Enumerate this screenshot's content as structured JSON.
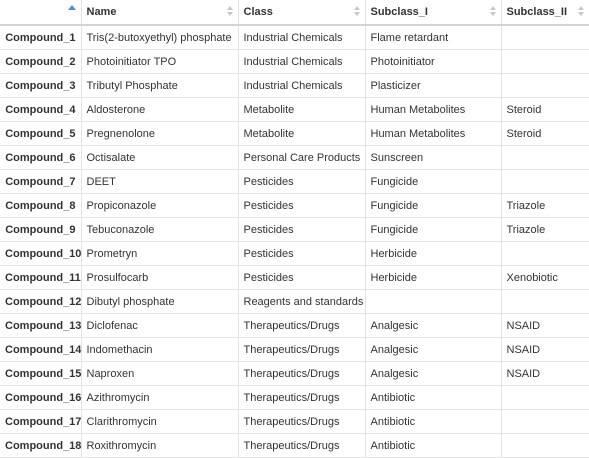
{
  "table": {
    "columns": [
      "",
      "Name",
      "Class",
      "Subclass_I",
      "Subclass_II"
    ],
    "rows": [
      {
        "id": "Compound_1",
        "name": "Tris(2-butoxyethyl) phosphate",
        "class": "Industrial Chemicals",
        "sub1": "Flame retardant",
        "sub2": ""
      },
      {
        "id": "Compound_2",
        "name": "Photoinitiator TPO",
        "class": "Industrial Chemicals",
        "sub1": "Photoinitiator",
        "sub2": ""
      },
      {
        "id": "Compound_3",
        "name": "Tributyl Phosphate",
        "class": "Industrial Chemicals",
        "sub1": "Plasticizer",
        "sub2": ""
      },
      {
        "id": "Compound_4",
        "name": "Aldosterone",
        "class": "Metabolite",
        "sub1": "Human Metabolites",
        "sub2": "Steroid"
      },
      {
        "id": "Compound_5",
        "name": "Pregnenolone",
        "class": "Metabolite",
        "sub1": "Human Metabolites",
        "sub2": "Steroid"
      },
      {
        "id": "Compound_6",
        "name": "Octisalate",
        "class": "Personal Care Products",
        "sub1": "Sunscreen",
        "sub2": ""
      },
      {
        "id": "Compound_7",
        "name": "DEET",
        "class": "Pesticides",
        "sub1": "Fungicide",
        "sub2": ""
      },
      {
        "id": "Compound_8",
        "name": "Propiconazole",
        "class": "Pesticides",
        "sub1": "Fungicide",
        "sub2": "Triazole"
      },
      {
        "id": "Compound_9",
        "name": "Tebuconazole",
        "class": "Pesticides",
        "sub1": "Fungicide",
        "sub2": "Triazole"
      },
      {
        "id": "Compound_10",
        "name": "Prometryn",
        "class": "Pesticides",
        "sub1": "Herbicide",
        "sub2": ""
      },
      {
        "id": "Compound_11",
        "name": "Prosulfocarb",
        "class": "Pesticides",
        "sub1": "Herbicide",
        "sub2": "Xenobiotic"
      },
      {
        "id": "Compound_12",
        "name": "Dibutyl phosphate",
        "class": "Reagents and standards",
        "sub1": "",
        "sub2": ""
      },
      {
        "id": "Compound_13",
        "name": "Diclofenac",
        "class": "Therapeutics/Drugs",
        "sub1": "Analgesic",
        "sub2": "NSAID"
      },
      {
        "id": "Compound_14",
        "name": "Indomethacin",
        "class": "Therapeutics/Drugs",
        "sub1": "Analgesic",
        "sub2": "NSAID"
      },
      {
        "id": "Compound_15",
        "name": "Naproxen",
        "class": "Therapeutics/Drugs",
        "sub1": "Analgesic",
        "sub2": "NSAID"
      },
      {
        "id": "Compound_16",
        "name": "Azithromycin",
        "class": "Therapeutics/Drugs",
        "sub1": "Antibiotic",
        "sub2": ""
      },
      {
        "id": "Compound_17",
        "name": "Clarithromycin",
        "class": "Therapeutics/Drugs",
        "sub1": "Antibiotic",
        "sub2": ""
      },
      {
        "id": "Compound_18",
        "name": "Roxithromycin",
        "class": "Therapeutics/Drugs",
        "sub1": "Antibiotic",
        "sub2": ""
      }
    ]
  },
  "icons": {
    "sort_active": "sort-ascending-icon",
    "sort_inactive": "sort-both-icon"
  },
  "colors": {
    "sort_active": "#4a90d9",
    "sort_inactive": "#c8c8c8",
    "border": "#e3e3e3"
  }
}
